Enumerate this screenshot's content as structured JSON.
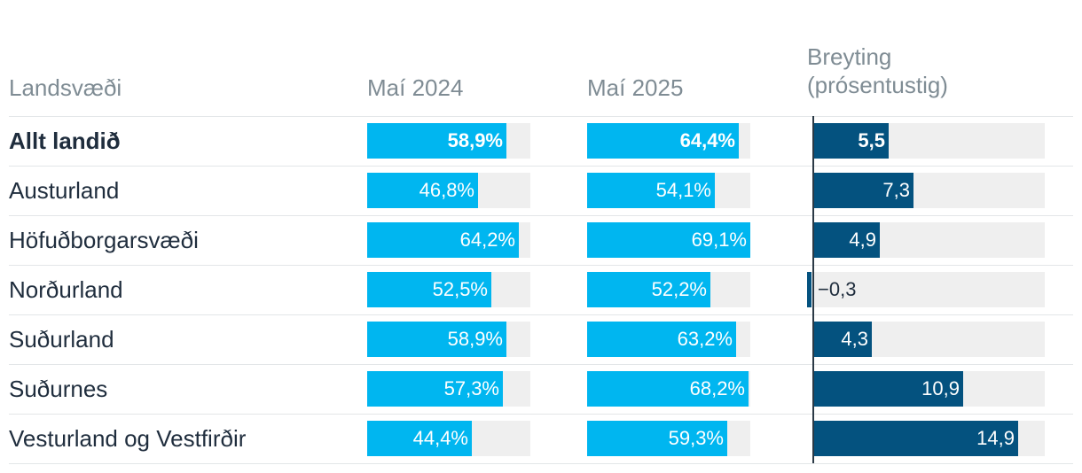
{
  "headers": {
    "region": "Landsvæði",
    "may2024": "Maí 2024",
    "may2025": "Maí 2025",
    "change_line1": "Breyting",
    "change_line2": "(prósentustig)"
  },
  "colors": {
    "percent_bar": "#00b6f0",
    "change_bar": "#04527f",
    "track": "#efefef"
  },
  "chart_data": {
    "type": "table",
    "columns": [
      "Landsvæði",
      "Maí 2024",
      "Maí 2025",
      "Breyting (prósentustig)"
    ],
    "rows": [
      {
        "region": "Allt landið",
        "may2024": 58.9,
        "may2025": 64.4,
        "change": 5.5,
        "may2024_label": "58,9%",
        "may2025_label": "64,4%",
        "change_label": "5,5",
        "bold": true
      },
      {
        "region": "Austurland",
        "may2024": 46.8,
        "may2025": 54.1,
        "change": 7.3,
        "may2024_label": "46,8%",
        "may2025_label": "54,1%",
        "change_label": "7,3",
        "bold": false
      },
      {
        "region": "Höfuðborgarsvæði",
        "may2024": 64.2,
        "may2025": 69.1,
        "change": 4.9,
        "may2024_label": "64,2%",
        "may2025_label": "69,1%",
        "change_label": "4,9",
        "bold": false
      },
      {
        "region": "Norðurland",
        "may2024": 52.5,
        "may2025": 52.2,
        "change": -0.3,
        "may2024_label": "52,5%",
        "may2025_label": "52,2%",
        "change_label": "−0,3",
        "bold": false
      },
      {
        "region": "Suðurland",
        "may2024": 58.9,
        "may2025": 63.2,
        "change": 4.3,
        "may2024_label": "58,9%",
        "may2025_label": "63,2%",
        "change_label": "4,3",
        "bold": false
      },
      {
        "region": "Suðurnes",
        "may2024": 57.3,
        "may2025": 68.2,
        "change": 10.9,
        "may2024_label": "57,3%",
        "may2025_label": "68,2%",
        "change_label": "10,9",
        "bold": false
      },
      {
        "region": "Vesturland og Vestfirðir",
        "may2024": 44.4,
        "may2025": 59.3,
        "change": 14.9,
        "may2024_label": "44,4%",
        "may2025_label": "59,3%",
        "change_label": "14,9",
        "bold": false
      }
    ],
    "percent_scale_max": 69.1,
    "change_scale_max": 16.8
  }
}
